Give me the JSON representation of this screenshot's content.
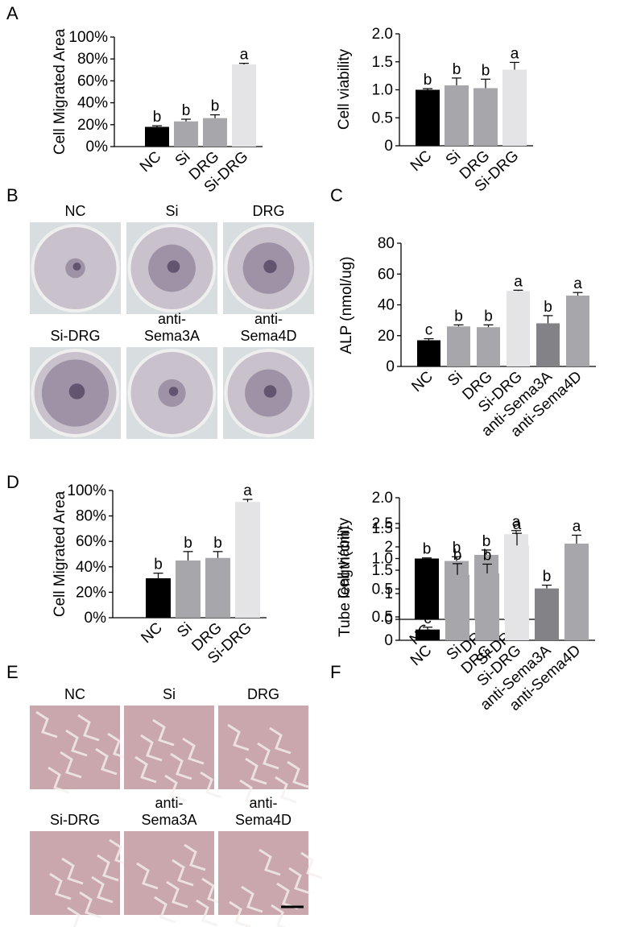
{
  "panels": {
    "A": "A",
    "B": "B",
    "C": "C",
    "D": "D",
    "E": "E",
    "F": "F"
  },
  "colors": {
    "NC": "#000000",
    "Si": "#a7a7ab",
    "DRG": "#a7a7ab",
    "Si-DRG": "#e4e4e6",
    "anti-Sema3A": "#838387",
    "anti-Sema4D": "#a7a7ab",
    "culture_dish": "#c9c1cc",
    "stain": "#6a5a78",
    "microscopy_bg": "#c9a7ac"
  },
  "photos": {
    "B": [
      "NC",
      "Si",
      "DRG",
      "Si-DRG",
      "anti-\nSema3A",
      "anti-\nSema4D"
    ],
    "E": [
      "NC",
      "Si",
      "DRG",
      "Si-DRG",
      "anti-\nSema3A",
      "anti-\nSema4D"
    ]
  },
  "chart_data": [
    {
      "panel": "A",
      "type": "bar",
      "ylabel": "Cell Migrated Area",
      "categories": [
        "NC",
        "Si",
        "DRG",
        "Si-DRG"
      ],
      "values": [
        18,
        23,
        26,
        75
      ],
      "errors": [
        1,
        2,
        3,
        1
      ],
      "letters": [
        "b",
        "b",
        "b",
        "a"
      ],
      "ylim": [
        0,
        100
      ],
      "yticks": [
        "0%",
        "20%",
        "40%",
        "60%",
        "80%",
        "100%"
      ]
    },
    {
      "panel": "A",
      "type": "bar",
      "ylabel": "Cell viability",
      "categories": [
        "NC",
        "Si",
        "DRG",
        "Si-DRG"
      ],
      "values": [
        1.0,
        1.08,
        1.03,
        1.36
      ],
      "errors": [
        0.02,
        0.13,
        0.16,
        0.13
      ],
      "letters": [
        "b",
        "b",
        "b",
        "a"
      ],
      "ylim": [
        0,
        2.0
      ],
      "yticks": [
        "0",
        "0.5",
        "1.0",
        "1.5",
        "2.0"
      ]
    },
    {
      "panel": "C",
      "type": "bar",
      "ylabel": "ALP (nmol/ug)",
      "categories": [
        "NC",
        "Si",
        "DRG",
        "Si-DRG",
        "anti-Sema3A",
        "anti-Sema4D"
      ],
      "values": [
        17,
        26,
        25.5,
        49,
        28,
        46
      ],
      "errors": [
        1,
        1,
        1.5,
        0.5,
        5,
        2
      ],
      "letters": [
        "c",
        "b",
        "b",
        "a",
        "b",
        "a"
      ],
      "ylim": [
        0,
        80
      ],
      "yticks": [
        "0",
        "20",
        "40",
        "60",
        "80"
      ]
    },
    {
      "panel": "D",
      "type": "bar",
      "ylabel": "Cell Migrated Area",
      "categories": [
        "NC",
        "Si",
        "DRG",
        "Si-DRG"
      ],
      "values": [
        31,
        45,
        47,
        91
      ],
      "errors": [
        4,
        7,
        5,
        2
      ],
      "letters": [
        "b",
        "b",
        "b",
        "a"
      ],
      "ylim": [
        0,
        100
      ],
      "yticks": [
        "0%",
        "20%",
        "40%",
        "60%",
        "80%",
        "100%"
      ]
    },
    {
      "panel": "D",
      "type": "bar",
      "ylabel": "Cell viability",
      "categories": [
        "NC",
        "Si",
        "DRG",
        "Si-DRG"
      ],
      "values": [
        1.0,
        0.96,
        1.06,
        1.4
      ],
      "errors": [
        0.01,
        0.07,
        0.08,
        0.06
      ],
      "letters": [
        "b",
        "b",
        "b",
        "a"
      ],
      "ylim": [
        0,
        2.0
      ],
      "yticks": [
        "0",
        "0.5",
        "1.0",
        "1.5",
        "2.0"
      ]
    },
    {
      "panel": "F",
      "type": "bar",
      "ylabel": "Tube length(cm)",
      "categories": [
        "NC",
        "Si",
        "DRG",
        "Si-DRG",
        "anti-Sema3A",
        "anti-Sema4D"
      ],
      "values": [
        0.23,
        1.4,
        1.43,
        2.03,
        1.11,
        2.07
      ],
      "errors": [
        0.05,
        0.24,
        0.2,
        0.26,
        0.07,
        0.18
      ],
      "letters": [
        "c",
        "b",
        "b",
        "a",
        "b",
        "a"
      ],
      "ylim": [
        0,
        2.5
      ],
      "yticks": [
        "0",
        "0.5",
        "1",
        "1.5",
        "2",
        "2.5"
      ]
    }
  ]
}
